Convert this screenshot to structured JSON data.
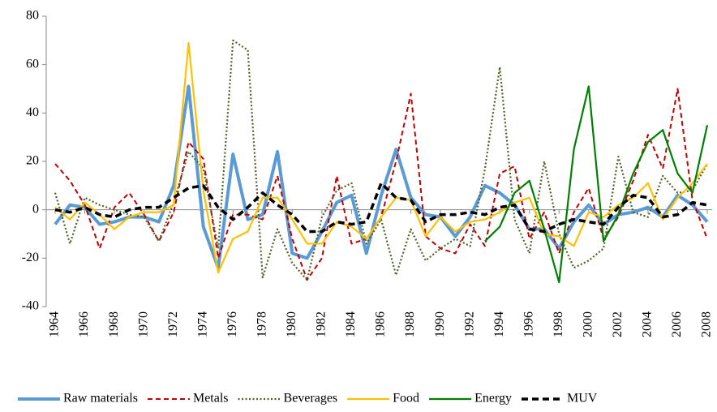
{
  "chart_data": {
    "type": "line",
    "x": [
      1964,
      1965,
      1966,
      1967,
      1968,
      1969,
      1970,
      1971,
      1972,
      1973,
      1974,
      1975,
      1976,
      1977,
      1978,
      1979,
      1980,
      1981,
      1982,
      1983,
      1984,
      1985,
      1986,
      1987,
      1988,
      1989,
      1990,
      1991,
      1992,
      1993,
      1994,
      1995,
      1996,
      1997,
      1998,
      1999,
      2000,
      2001,
      2002,
      2003,
      2004,
      2005,
      2006,
      2007,
      2008
    ],
    "xlim": [
      1964,
      2008
    ],
    "xticks": [
      1964,
      1966,
      1968,
      1970,
      1972,
      1974,
      1976,
      1978,
      1980,
      1982,
      1984,
      1986,
      1988,
      1990,
      1992,
      1994,
      1996,
      1998,
      2000,
      2002,
      2004,
      2006,
      2008
    ],
    "ylim": [
      -40,
      80
    ],
    "yticks": [
      -40,
      -20,
      0,
      20,
      40,
      60,
      80
    ],
    "grid": false,
    "legend": "bottom",
    "series": [
      {
        "name": "Raw materials",
        "color": "#5b9bd5",
        "values": [
          -6,
          2,
          1,
          -6,
          -5,
          -3,
          -3,
          -5,
          10,
          51,
          -7,
          -24,
          23,
          -4,
          -2,
          24,
          -18,
          -20,
          -9,
          3,
          6,
          -18,
          6,
          25,
          5,
          -2,
          -3,
          -11,
          -3,
          10,
          7,
          2,
          -8,
          -8,
          -16,
          -5,
          2,
          -6,
          -2,
          -1,
          1,
          -3,
          6,
          2,
          -5
        ]
      },
      {
        "name": "Metals",
        "color": "#c00000",
        "values": [
          19,
          12,
          2,
          -16,
          1,
          7,
          -2,
          -13,
          -1,
          28,
          21,
          -20,
          -2,
          -2,
          -4,
          14,
          -12,
          -29,
          -20,
          14,
          -14,
          -12,
          -3,
          20,
          48,
          -11,
          -16,
          -18,
          -6,
          -15,
          15,
          18,
          -12,
          -1,
          -18,
          -1,
          9,
          -12,
          -3,
          12,
          31,
          17,
          50,
          4,
          -12
        ]
      },
      {
        "name": "Beverages",
        "color": "#4f6228",
        "values": [
          7,
          -14,
          5,
          2,
          0,
          -2,
          -3,
          -13,
          3,
          24,
          17,
          -16,
          70,
          66,
          -28,
          -8,
          -22,
          -29,
          -3,
          8,
          11,
          -14,
          -4,
          -27,
          -8,
          -21,
          -16,
          -12,
          -15,
          17,
          59,
          -4,
          -18,
          20,
          -10,
          -24,
          -21,
          -16,
          22,
          -1,
          -3,
          14,
          7,
          8,
          19
        ]
      },
      {
        "name": "Food",
        "color": "#ffc000",
        "values": [
          1,
          -4,
          3,
          -2,
          -8,
          -3,
          -1,
          -1,
          2,
          69,
          8,
          -26,
          -12,
          -9,
          5,
          5,
          -4,
          -14,
          -14,
          -5,
          -7,
          -12,
          -3,
          5,
          4,
          -11,
          -3,
          -9,
          -5,
          -4,
          -1,
          3,
          5,
          -10,
          -11,
          -15,
          -1,
          -3,
          2,
          5,
          11,
          -4,
          5,
          11,
          19
        ]
      },
      {
        "name": "Energy",
        "color": "#008000",
        "values": [
          null,
          null,
          null,
          null,
          null,
          null,
          null,
          null,
          null,
          null,
          null,
          null,
          null,
          null,
          null,
          null,
          null,
          null,
          null,
          null,
          null,
          null,
          null,
          null,
          null,
          null,
          null,
          null,
          null,
          -13,
          -7,
          7,
          12,
          -8,
          -30,
          25,
          51,
          -13,
          -2,
          15,
          28,
          33,
          15,
          7,
          35
        ]
      },
      {
        "name": "MUV",
        "color": "#000000",
        "values": [
          0,
          -1,
          1,
          -2,
          -3,
          0,
          1,
          1,
          5,
          9,
          10,
          1,
          -4,
          1,
          7,
          2,
          -2,
          -9,
          -9,
          -5,
          -6,
          -5,
          11,
          5,
          4,
          -5,
          -2,
          -2,
          -1,
          -2,
          1,
          2,
          -8,
          -9,
          -6,
          -4,
          -5,
          -6,
          1,
          6,
          5,
          -3,
          -2,
          3,
          2
        ]
      }
    ]
  }
}
